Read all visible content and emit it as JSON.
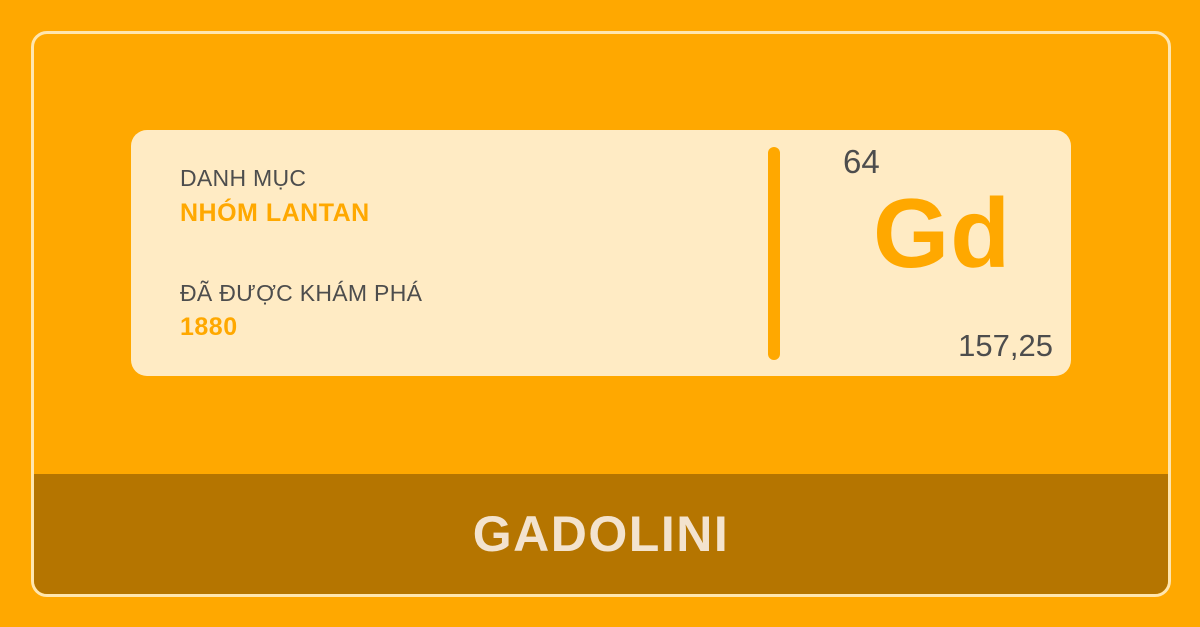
{
  "card": {
    "category_label": "DANH MỤC",
    "category_value": "NHÓM LANTAN",
    "discovered_label": "ĐÃ ĐƯỢC KHÁM PHÁ",
    "discovered_value": "1880"
  },
  "element": {
    "atomic_number": "64",
    "symbol": "Gd",
    "atomic_mass": "157,25",
    "name": "GADOLINI"
  },
  "colors": {
    "background": "#FFA800",
    "card": "#FFEBC4",
    "name_bar": "#B57500",
    "accent": "#FFA800",
    "name_text": "#F3E3CE"
  }
}
